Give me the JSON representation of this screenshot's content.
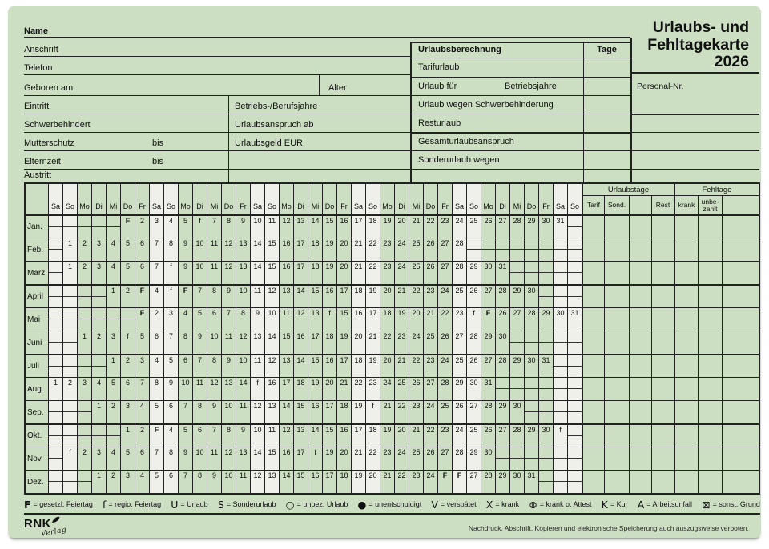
{
  "colors": {
    "card_bg": "#cddfc3",
    "weekend_bg": "#eef0e9",
    "line": "#222222"
  },
  "header": {
    "title_lines": [
      "Urlaubs- und",
      "Fehltagekarte",
      "2026"
    ],
    "personal_nr": "Personal-Nr."
  },
  "form": {
    "name": "Name",
    "anschrift": "Anschrift",
    "telefon": "Telefon",
    "geboren_am": "Geboren am",
    "alter": "Alter",
    "eintritt": "Eintritt",
    "betriebs_berufsjahre": "Betriebs-/Berufsjahre",
    "schwerbehindert": "Schwerbehindert",
    "urlaubsanspruch_ab": "Urlaubsanspruch ab",
    "mutterschutz": "Mutterschutz",
    "bis": "bis",
    "urlaubsgeld_eur": "Urlaubsgeld EUR",
    "elternzeit": "Elternzeit",
    "austritt": "Austritt"
  },
  "urlaubsberechnung": {
    "title": "Urlaubsberechnung",
    "tage": "Tage",
    "rows": [
      "Tarifurlaub",
      "Urlaub für",
      "Urlaub wegen Schwerbehinderung",
      "Resturlaub",
      "Gesamturlaubsanspruch",
      "Sonderurlaub wegen"
    ],
    "row2_suffix": "Betriebsjahre"
  },
  "calendar": {
    "weekday_cycle": [
      "Sa",
      "So",
      "Mo",
      "Di",
      "Mi",
      "Do",
      "Fr"
    ],
    "total_cols": 37,
    "sections": [
      {
        "title": "Urlaubstage",
        "cols": [
          "Tarif",
          "Sond.",
          "",
          "Rest"
        ]
      },
      {
        "title": "Fehltage",
        "cols": [
          "krank",
          "unbe- zahlt",
          ""
        ]
      }
    ],
    "months": [
      {
        "name": "Jan.",
        "start": 6,
        "days": 31,
        "marks": {
          "1": "F",
          "6": "f"
        }
      },
      {
        "name": "Feb.",
        "start": 2,
        "days": 28,
        "marks": {}
      },
      {
        "name": "März",
        "start": 2,
        "days": 31,
        "marks": {
          "8": "f"
        }
      },
      {
        "name": "April",
        "start": 5,
        "days": 30,
        "marks": {
          "3": "F",
          "5": "f",
          "6": "F"
        }
      },
      {
        "name": "Mai",
        "start": 7,
        "days": 31,
        "marks": {
          "1": "F",
          "14": "f",
          "24": "f",
          "25": "F"
        }
      },
      {
        "name": "Juni",
        "start": 3,
        "days": 30,
        "marks": {
          "4": "f"
        }
      },
      {
        "name": "Juli",
        "start": 5,
        "days": 31,
        "marks": {}
      },
      {
        "name": "Aug.",
        "start": 1,
        "days": 31,
        "marks": {
          "15": "f"
        }
      },
      {
        "name": "Sep.",
        "start": 4,
        "days": 30,
        "marks": {
          "20": "f"
        }
      },
      {
        "name": "Okt.",
        "start": 6,
        "days": 31,
        "marks": {
          "3": "F",
          "31": "f"
        }
      },
      {
        "name": "Nov.",
        "start": 2,
        "days": 30,
        "marks": {
          "1": "f",
          "18": "f"
        }
      },
      {
        "name": "Dez.",
        "start": 4,
        "days": 31,
        "marks": {
          "25": "F",
          "26": "F"
        }
      }
    ]
  },
  "legend": [
    {
      "symbol": "F",
      "text": "gesetzl. Feiertag",
      "bold": true
    },
    {
      "symbol": "f",
      "text": "regio. Feiertag"
    },
    {
      "symbol": "U",
      "text": "Urlaub"
    },
    {
      "symbol": "S",
      "text": "Sonderurlaub"
    },
    {
      "symbol": "○",
      "text": "unbez. Urlaub"
    },
    {
      "symbol": "●",
      "text": "unentschuldigt"
    },
    {
      "symbol": "V",
      "text": "verspätet"
    },
    {
      "symbol": "X",
      "text": "krank"
    },
    {
      "symbol": "⊗",
      "text": "krank o. Attest"
    },
    {
      "symbol": "K",
      "text": "Kur"
    },
    {
      "symbol": "A",
      "text": "Arbeitsunfall"
    },
    {
      "symbol": "⊠",
      "text": "sonst. Grund"
    }
  ],
  "footer": {
    "publisher": "RNK",
    "publisher_sub": "Verlag",
    "copyright": "Nachdruck, Abschrift, Kopieren und elektronische Speicherung auch auszugsweise verboten."
  }
}
